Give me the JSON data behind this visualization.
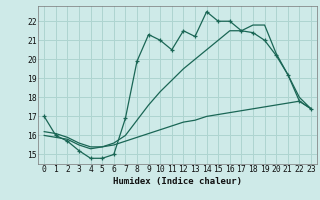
{
  "xlabel": "Humidex (Indice chaleur)",
  "background_color": "#ceeae8",
  "grid_color": "#aed4d0",
  "line_color": "#1a6655",
  "xlim": [
    -0.5,
    23.5
  ],
  "ylim": [
    14.5,
    22.8
  ],
  "yticks": [
    15,
    16,
    17,
    18,
    19,
    20,
    21,
    22
  ],
  "xticks": [
    0,
    1,
    2,
    3,
    4,
    5,
    6,
    7,
    8,
    9,
    10,
    11,
    12,
    13,
    14,
    15,
    16,
    17,
    18,
    19,
    20,
    21,
    22,
    23
  ],
  "series": [
    {
      "x": [
        0,
        1,
        2,
        3,
        4,
        5,
        6,
        7,
        8,
        9,
        10,
        11,
        12,
        13,
        14,
        15,
        16,
        17,
        18,
        19,
        20,
        21,
        22,
        23
      ],
      "y": [
        17.0,
        16.0,
        15.7,
        15.2,
        14.8,
        14.8,
        15.0,
        16.9,
        19.9,
        21.3,
        21.0,
        20.5,
        21.5,
        21.2,
        22.5,
        22.0,
        22.0,
        21.5,
        21.4,
        21.0,
        20.2,
        19.2,
        17.8,
        17.4
      ],
      "marker": true
    },
    {
      "x": [
        0,
        1,
        2,
        3,
        4,
        5,
        6,
        7,
        8,
        9,
        10,
        11,
        12,
        13,
        14,
        15,
        16,
        17,
        18,
        19,
        20,
        21,
        22,
        23
      ],
      "y": [
        16.0,
        15.9,
        15.8,
        15.5,
        15.3,
        15.4,
        15.6,
        16.0,
        16.8,
        17.6,
        18.3,
        18.9,
        19.5,
        20.0,
        20.5,
        21.0,
        21.5,
        21.5,
        21.8,
        21.8,
        20.3,
        19.2,
        18.0,
        17.4
      ],
      "marker": false
    },
    {
      "x": [
        0,
        1,
        2,
        3,
        4,
        5,
        6,
        7,
        8,
        9,
        10,
        11,
        12,
        13,
        14,
        15,
        16,
        17,
        18,
        19,
        20,
        21,
        22,
        23
      ],
      "y": [
        16.2,
        16.1,
        15.9,
        15.6,
        15.4,
        15.4,
        15.5,
        15.7,
        15.9,
        16.1,
        16.3,
        16.5,
        16.7,
        16.8,
        17.0,
        17.1,
        17.2,
        17.3,
        17.4,
        17.5,
        17.6,
        17.7,
        17.8,
        17.4
      ],
      "marker": false
    }
  ]
}
